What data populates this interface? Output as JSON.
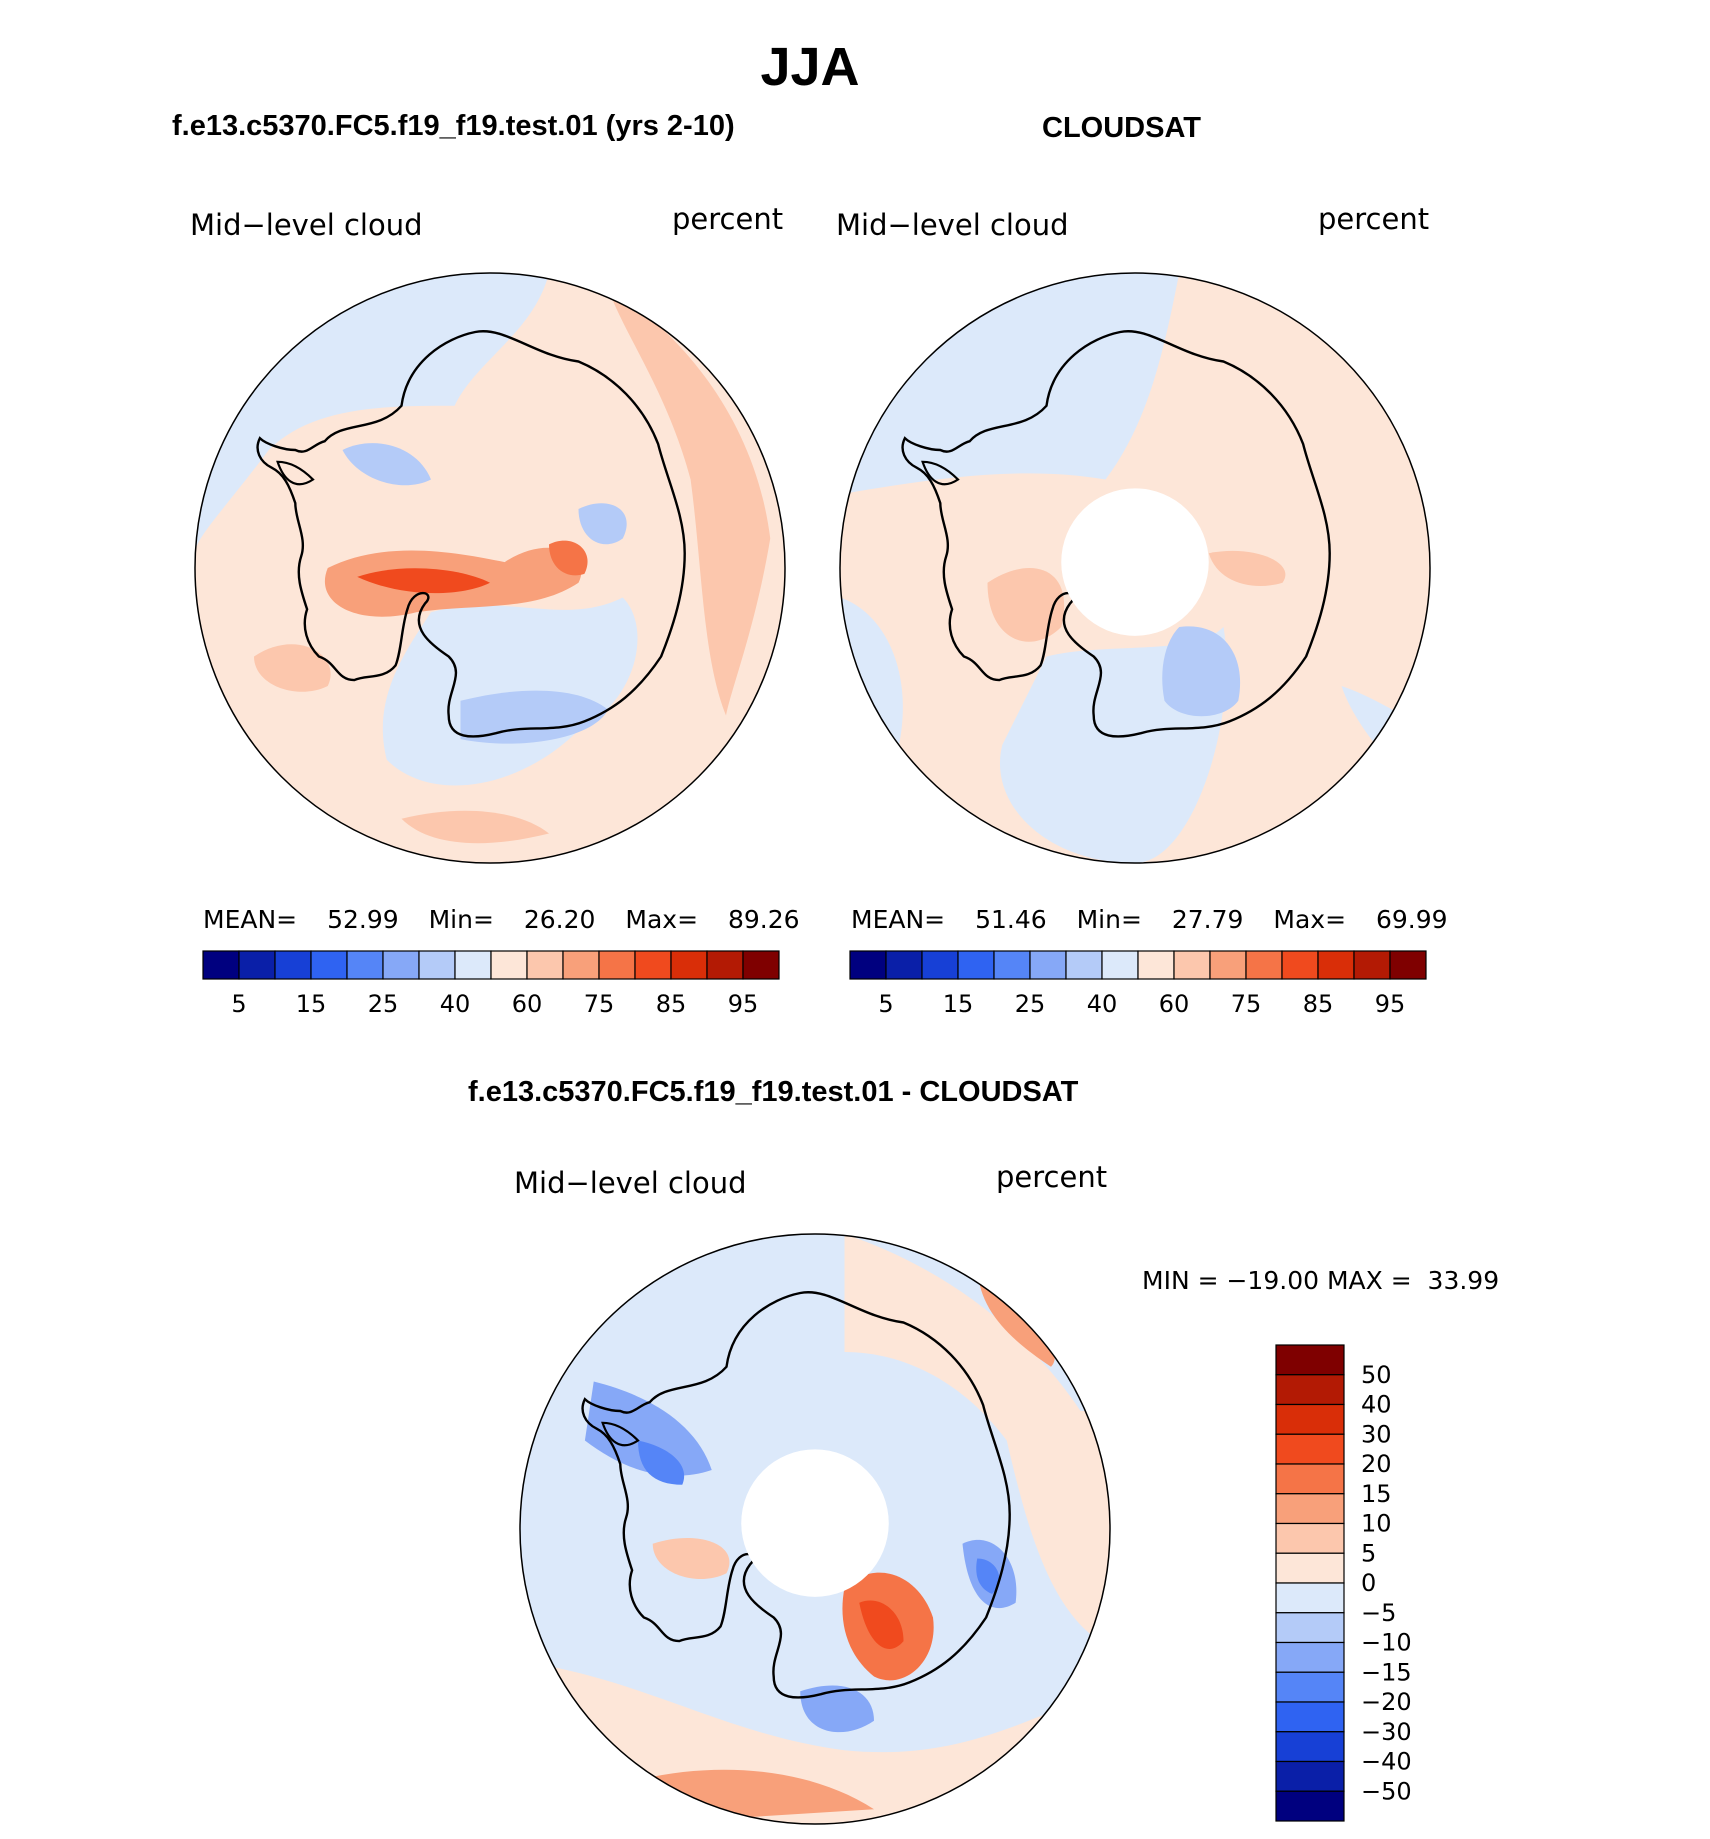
{
  "main_title": "JJA",
  "colors": {
    "abs_scale": [
      "#00007f",
      "#0a1fa8",
      "#1740d6",
      "#2f63f2",
      "#5585f7",
      "#86a8f7",
      "#b4cbf8",
      "#dce9fa",
      "#fde6d8",
      "#fcc7ad",
      "#f8a07a",
      "#f57447",
      "#f04a1e",
      "#d92e08",
      "#b31a04",
      "#7f0000"
    ],
    "diff_scale": [
      "#00007f",
      "#0a1fa8",
      "#1740d6",
      "#2f63f2",
      "#5585f7",
      "#86a8f7",
      "#b4cbf8",
      "#dce9fa",
      "#fde6d8",
      "#fcc7ad",
      "#f8a07a",
      "#f57447",
      "#f04a1e",
      "#d92e08",
      "#b31a04",
      "#7f0000"
    ]
  },
  "panel_left": {
    "header": "f.e13.c5370.FC5.f19_f19.test.01 (yrs 2-10)",
    "variable": "Mid−level cloud",
    "units": "percent",
    "stats": {
      "mean_label": "MEAN=",
      "mean": "52.99",
      "min_label": "Min=",
      "min": "26.20",
      "max_label": "Max=",
      "max": "89.26"
    },
    "colorbar_ticks": [
      "5",
      "15",
      "25",
      "40",
      "60",
      "75",
      "85",
      "95"
    ]
  },
  "panel_right": {
    "header": "CLOUDSAT",
    "variable": "Mid−level cloud",
    "units": "percent",
    "stats": {
      "mean_label": "MEAN=",
      "mean": "51.46",
      "min_label": "Min=",
      "min": "27.79",
      "max_label": "Max=",
      "max": "69.99"
    },
    "colorbar_ticks": [
      "5",
      "15",
      "25",
      "40",
      "60",
      "75",
      "85",
      "95"
    ]
  },
  "panel_diff": {
    "header": "f.e13.c5370.FC5.f19_f19.test.01 - CLOUDSAT",
    "variable": "Mid−level cloud",
    "units": "percent",
    "minmax_text": "MIN = −19.00 MAX =  33.99",
    "colorbar_ticks": [
      "50",
      "40",
      "30",
      "20",
      "15",
      "10",
      "5",
      "0",
      "−5",
      "−10",
      "−15",
      "−20",
      "−30",
      "−40",
      "−50"
    ]
  }
}
